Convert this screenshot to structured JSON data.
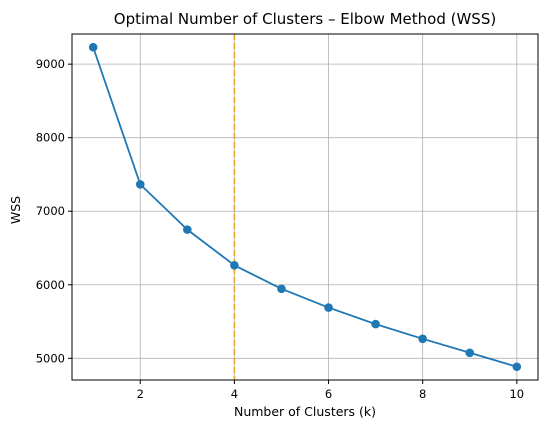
{
  "chart_data": {
    "type": "line",
    "title": "Optimal Number of Clusters – Elbow Method (WSS)",
    "xlabel": "Number of Clusters (k)",
    "ylabel": "WSS",
    "x": [
      1,
      2,
      3,
      4,
      5,
      6,
      7,
      8,
      9,
      10
    ],
    "series": [
      {
        "values": [
          9230,
          7365,
          6750,
          6265,
          5945,
          5690,
          5465,
          5265,
          5075,
          4885
        ],
        "color": "#1f77b4",
        "marker": "circle"
      }
    ],
    "xlim": [
      0.55,
      10.45
    ],
    "ylim": [
      4705,
      9410
    ],
    "xticks": [
      2,
      4,
      6,
      8,
      10
    ],
    "yticks": [
      5000,
      6000,
      7000,
      8000,
      9000
    ],
    "grid": true,
    "vline": {
      "x": 4,
      "color": "#e8a72a",
      "style": "dashed"
    }
  }
}
